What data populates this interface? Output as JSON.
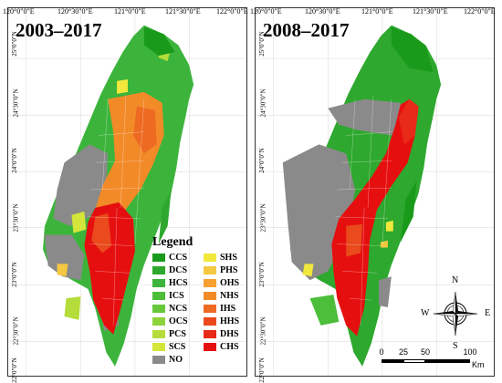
{
  "panels": {
    "left": {
      "title": "2003–2017",
      "lon_labels": [
        "120°0\"0\"E",
        "120°30\"0\"E",
        "121°0\"0\"E",
        "121°30\"0\"E",
        "122°0\"0\"E"
      ],
      "lat_labels": [
        "25°0\"0\"N",
        "24°30\"0\"N",
        "24°0\"0\"N",
        "23°30\"0\"N",
        "23°0\"0\"N",
        "22°30\"0\"N",
        "22°0\"0\"N"
      ]
    },
    "right": {
      "title": "2008–2017",
      "lon_labels": [
        "120°0\"0\"E",
        "120°30\"0\"E",
        "121°0\"0\"E",
        "121°30\"0\"E",
        "122°0\"0\"E"
      ],
      "lat_labels": [
        "25°0\"0\"N",
        "24°30\"0\"N",
        "24°0\"0\"N",
        "23°30\"0\"N",
        "23°0\"0\"N",
        "22°30\"0\"N",
        "22°0\"0\"N"
      ]
    }
  },
  "legend": {
    "title": "Legend",
    "items": [
      {
        "label": "CCS",
        "color": "#1a9a1a"
      },
      {
        "label": "SHS",
        "color": "#f2e83c"
      },
      {
        "label": "DCS",
        "color": "#2ea82e"
      },
      {
        "label": "PHS",
        "color": "#f5c842"
      },
      {
        "label": "HCS",
        "color": "#3cb43c"
      },
      {
        "label": "OHS",
        "color": "#f5a030"
      },
      {
        "label": "ICS",
        "color": "#4cbe3a"
      },
      {
        "label": "NHS",
        "color": "#f28a28"
      },
      {
        "label": "NCS",
        "color": "#66c83a"
      },
      {
        "label": "IHS",
        "color": "#ee6a22"
      },
      {
        "label": "OCS",
        "color": "#8cd23a"
      },
      {
        "label": "HHS",
        "color": "#ea4a1c"
      },
      {
        "label": "PCS",
        "color": "#b4dc3a"
      },
      {
        "label": "DHS",
        "color": "#e82a18"
      },
      {
        "label": "SCS",
        "color": "#d4e63a"
      },
      {
        "label": "CHS",
        "color": "#e60f0f"
      },
      {
        "label": "NO",
        "color": "#8a8a8a"
      }
    ]
  },
  "compass": {
    "n": "N",
    "s": "S",
    "e": "E",
    "w": "W"
  },
  "scale": {
    "ticks": [
      "0",
      "25",
      "50",
      "100"
    ],
    "unit": "Km"
  },
  "colors": {
    "border": "#ffffff",
    "no_data": "#8a8a8a",
    "green": "#3cb43c",
    "red": "#e60f0f",
    "orange": "#f28a28"
  }
}
